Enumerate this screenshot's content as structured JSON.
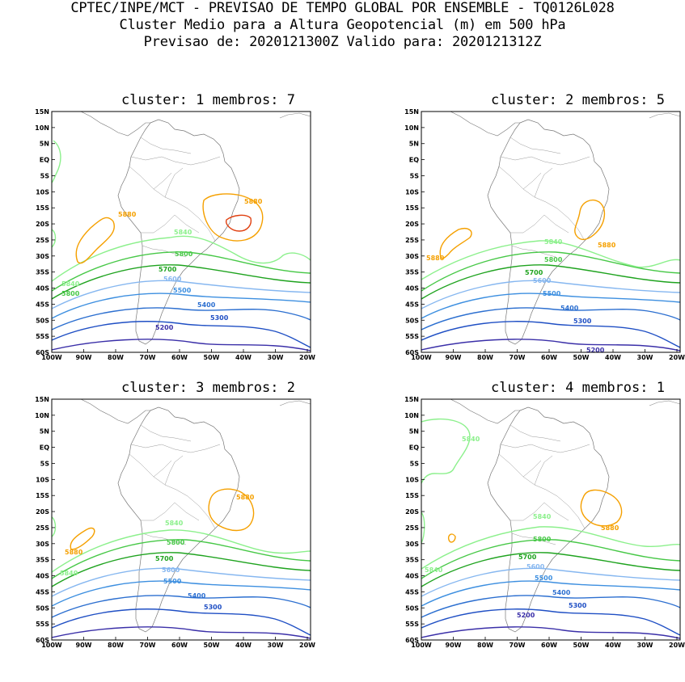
{
  "header": {
    "line1": "CPTEC/INPE/MCT - PREVISAO DE TEMPO GLOBAL POR ENSEMBLE - TQ0126L028",
    "line2": "Cluster Medio para a Altura Geopotencial (m) em 500 hPa",
    "line3": "Previsao de: 2020121300Z   Valido para: 2020121312Z"
  },
  "axes": {
    "lat_labels": [
      "15N",
      "10N",
      "5N",
      "EQ",
      "5S",
      "10S",
      "15S",
      "20S",
      "25S",
      "30S",
      "35S",
      "40S",
      "45S",
      "50S",
      "55S",
      "60S"
    ],
    "lon_labels": [
      "100W",
      "90W",
      "80W",
      "70W",
      "60W",
      "50W",
      "40W",
      "30W",
      "20W"
    ]
  },
  "colors": {
    "c5200": "#3a2fa8",
    "c5300": "#1f4fc4",
    "c5400": "#2c6fd0",
    "c5500": "#3d8fe0",
    "c5600": "#86b7f0",
    "c5700": "#1fa31f",
    "c5800": "#47c847",
    "c5840": "#8cf08c",
    "c5880": "#f5a000",
    "c5920": "#e04010"
  },
  "panels": [
    {
      "title": "cluster: 1  membros: 7",
      "labels": {
        "l5880a": "5880",
        "l5880b": "5880",
        "l5840": "5840",
        "l5840b": "5840",
        "l5800": "5800",
        "l5800b": "5800",
        "l5700": "5700",
        "l5600": "5600",
        "l5500": "5500",
        "l5400": "5400",
        "l5300": "5300",
        "l5200": "5200"
      }
    },
    {
      "title": "cluster: 2  membros: 5",
      "labels": {
        "l5880a": "5880",
        "l5880b": "5880",
        "l5840": "5840",
        "l5800": "5800",
        "l5700": "5700",
        "l5600": "5600",
        "l5500": "5500",
        "l5400": "5400",
        "l5300": "5300",
        "l5200": "5200"
      }
    },
    {
      "title": "cluster: 3  membros: 2",
      "labels": {
        "l5880a": "5880",
        "l5880b": "5880",
        "l5840": "5840",
        "l5840b": "5840",
        "l5800": "5800",
        "l5700": "5700",
        "l5600": "5600",
        "l5500": "5500",
        "l5400": "5400",
        "l5300": "5300"
      }
    },
    {
      "title": "cluster: 4  membros: 1",
      "labels": {
        "l5880a": "5880",
        "l5840": "5840",
        "l5840b": "5840",
        "l5840c": "5840",
        "l5800": "5800",
        "l5700": "5700",
        "l5600": "5600",
        "l5500": "5500",
        "l5400": "5400",
        "l5300": "5300",
        "l5200": "5200"
      }
    }
  ]
}
